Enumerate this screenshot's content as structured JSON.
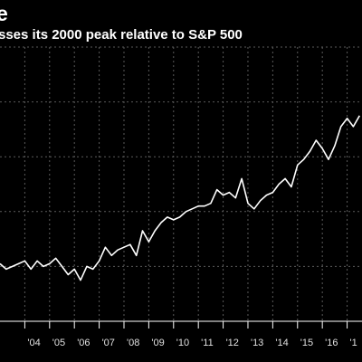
{
  "title": "e",
  "subtitle": "sses its 2000 peak relative to S&P 500",
  "colors": {
    "background": "#000000",
    "line": "#ffffff",
    "grid": "#5a5a5a",
    "axis": "#ffffff",
    "text": "#ffffff"
  },
  "chart_data": {
    "type": "line",
    "title": "e",
    "subtitle": "sses its 2000 peak relative to S&P 500",
    "xlabel": "",
    "ylabel": "",
    "x_tick_labels": [
      "'04",
      "'05",
      "'06",
      "'07",
      "'08",
      "'09",
      "'10",
      "'11",
      "'12",
      "'13",
      "'14",
      "'15",
      "'16",
      "'1"
    ],
    "x_tick_years": [
      2004,
      2005,
      2006,
      2007,
      2008,
      2009,
      2010,
      2011,
      2012,
      2013,
      2014,
      2015,
      2016,
      2017
    ],
    "xlim": [
      2003.0,
      2017.6
    ],
    "ylim": [
      0,
      100
    ],
    "grid": true,
    "series": [
      {
        "x": [
          2003.0,
          2003.25,
          2003.5,
          2003.75,
          2004.0,
          2004.25,
          2004.5,
          2004.75,
          2005.0,
          2005.25,
          2005.5,
          2005.75,
          2006.0,
          2006.25,
          2006.5,
          2006.75,
          2007.0,
          2007.25,
          2007.5,
          2007.75,
          2008.0,
          2008.25,
          2008.5,
          2008.75,
          2009.0,
          2009.25,
          2009.5,
          2009.75,
          2010.0,
          2010.25,
          2010.5,
          2010.75,
          2011.0,
          2011.25,
          2011.5,
          2011.75,
          2012.0,
          2012.25,
          2012.5,
          2012.75,
          2013.0,
          2013.25,
          2013.5,
          2013.75,
          2014.0,
          2014.25,
          2014.5,
          2014.75,
          2015.0,
          2015.25,
          2015.5,
          2015.75,
          2016.0,
          2016.25,
          2016.5,
          2016.75,
          2017.0,
          2017.25,
          2017.5
        ],
        "values": [
          21,
          19,
          20,
          21,
          22,
          19,
          22,
          20,
          21,
          23,
          20,
          17,
          19,
          15,
          20,
          19,
          22,
          27,
          24,
          26,
          27,
          28,
          24,
          33,
          29,
          33,
          36,
          38,
          37,
          38,
          40,
          41,
          42,
          42,
          43,
          48,
          46,
          47,
          45,
          52,
          43,
          41,
          44,
          46,
          47,
          50,
          52,
          49,
          57,
          59,
          62,
          66,
          63,
          59,
          64,
          71,
          74,
          71,
          75
        ]
      }
    ]
  }
}
